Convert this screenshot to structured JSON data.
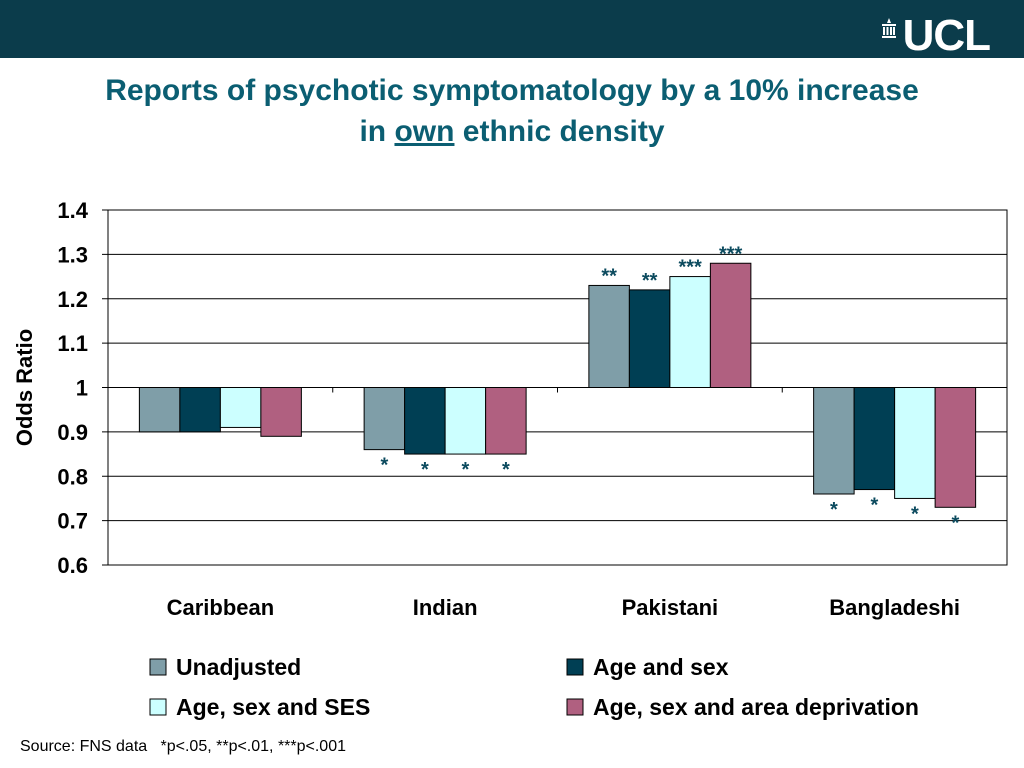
{
  "branding": {
    "logo_text": "UCL",
    "bar_color": "#0b3c4b"
  },
  "title": {
    "line1": "Reports of psychotic symptomatology by a 10% increase",
    "line2_before": "in ",
    "line2_underlined": "own",
    "line2_after": " ethnic density"
  },
  "chart_data": {
    "type": "bar",
    "ylabel": "Odds Ratio",
    "ylim": [
      0.6,
      1.4
    ],
    "baseline": 1,
    "yticks": [
      "0.6",
      "0.7",
      "0.8",
      "0.9",
      "1",
      "1.1",
      "1.2",
      "1.3",
      "1.4"
    ],
    "grid": true,
    "categories": [
      "Caribbean",
      "Indian",
      "Pakistani",
      "Bangladeshi"
    ],
    "series": [
      {
        "name": "Unadjusted",
        "color": "#7f9ea8",
        "values": [
          0.9,
          0.86,
          1.23,
          0.76
        ],
        "significance": [
          "",
          "*",
          "**",
          "*"
        ]
      },
      {
        "name": "Age and sex",
        "color": "#003f54",
        "values": [
          0.9,
          0.85,
          1.22,
          0.77
        ],
        "significance": [
          "",
          "*",
          "**",
          "*"
        ]
      },
      {
        "name": "Age, sex and SES",
        "color": "#ccffff",
        "values": [
          0.91,
          0.85,
          1.25,
          0.75
        ],
        "significance": [
          "",
          "*",
          "***",
          "*"
        ]
      },
      {
        "name": "Age, sex and area deprivation",
        "color": "#b06080",
        "values": [
          0.89,
          0.85,
          1.28,
          0.73
        ],
        "significance": [
          "",
          "*",
          "***",
          "*"
        ]
      }
    ],
    "legend_position": "bottom"
  },
  "footer": {
    "source": "Source: FNS data   *p<.05, **p<.01, ***p<.001"
  }
}
